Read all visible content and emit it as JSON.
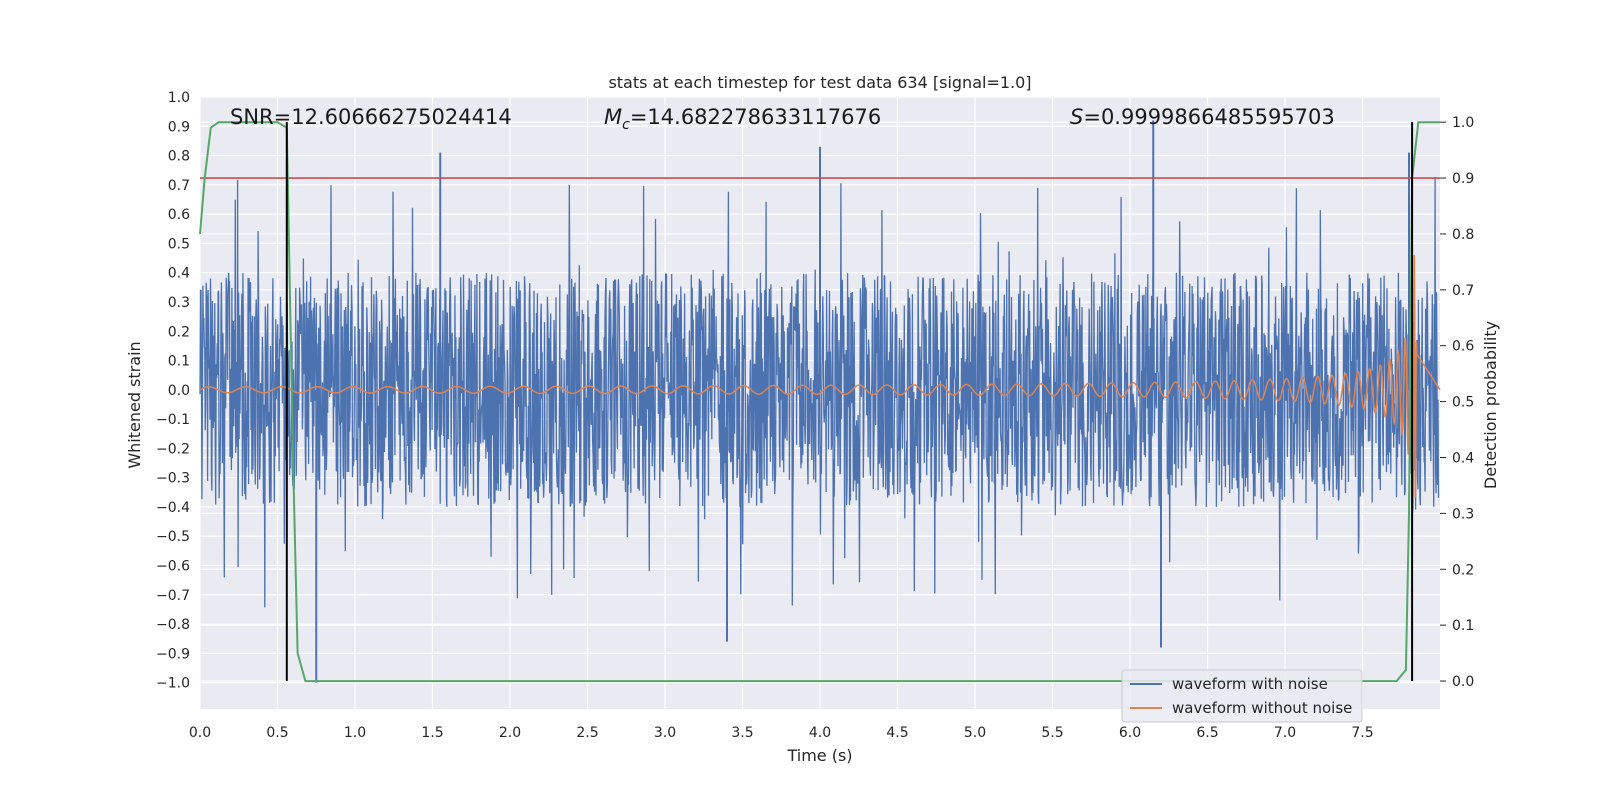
{
  "chart_data": {
    "type": "line",
    "title": "stats at each timestep for test data 634 [signal=1.0]",
    "xlabel": "Time (s)",
    "ylabel": "Whitened strain",
    "y2label": "Detection probability",
    "xlim": [
      0.0,
      8.0
    ],
    "ylim": [
      -1.09,
      1.0
    ],
    "y2lim": [
      -0.05,
      1.045
    ],
    "x_ticks": [
      "0.0",
      "0.5",
      "1.0",
      "1.5",
      "2.0",
      "2.5",
      "3.0",
      "3.5",
      "4.0",
      "4.5",
      "5.0",
      "5.5",
      "6.0",
      "6.5",
      "7.0",
      "7.5"
    ],
    "y_ticks": [
      "−1.0",
      "−0.9",
      "−0.8",
      "−0.7",
      "−0.6",
      "−0.5",
      "−0.4",
      "−0.3",
      "−0.2",
      "−0.1",
      "0.0",
      "0.1",
      "0.2",
      "0.3",
      "0.4",
      "0.5",
      "0.6",
      "0.7",
      "0.8",
      "0.9",
      "1.0"
    ],
    "y2_ticks": [
      "0.0",
      "0.1",
      "0.2",
      "0.3",
      "0.4",
      "0.5",
      "0.6",
      "0.7",
      "0.8",
      "0.9",
      "1.0"
    ],
    "grid": true,
    "legend_position": "lower-right",
    "annotations": {
      "snr": "SNR=12.60666275024414",
      "mc_symbol": "M",
      "mc_subscript": "c",
      "mc_value": "=14.682278633117676",
      "s_symbol": "S",
      "s_value": "=0.9999866485595703"
    },
    "series": [
      {
        "name": "waveform with noise",
        "color": "#4c72b0",
        "axis": "left",
        "description_values": {
          "band_amplitude": 0.4,
          "max_peak": 0.92,
          "min_peak": -1.0
        }
      },
      {
        "name": "waveform without noise",
        "color": "#dd8452",
        "axis": "left",
        "chirp": {
          "start_time": 0.0,
          "end_time": 7.85,
          "start_amplitude": 0.01,
          "peak_amplitude": 0.46,
          "merger_time": 7.84
        }
      },
      {
        "name": "detection probability",
        "color": "#55a868",
        "axis": "right",
        "x": [
          0.0,
          0.03,
          0.07,
          0.12,
          0.5,
          0.56,
          0.6,
          0.63,
          0.68,
          7.72,
          7.78,
          7.8,
          7.82,
          7.86,
          8.0
        ],
        "y": [
          0.8,
          0.9,
          0.99,
          1.0,
          1.0,
          0.99,
          0.4,
          0.05,
          0.0,
          0.0,
          0.02,
          0.3,
          0.9,
          1.0,
          1.0
        ]
      }
    ],
    "threshold_line": {
      "axis": "right",
      "value": 0.9,
      "color": "#c44e52"
    },
    "vertical_lines": [
      {
        "x": 0.56,
        "color": "#000000"
      },
      {
        "x": 7.82,
        "color": "#000000"
      }
    ]
  }
}
